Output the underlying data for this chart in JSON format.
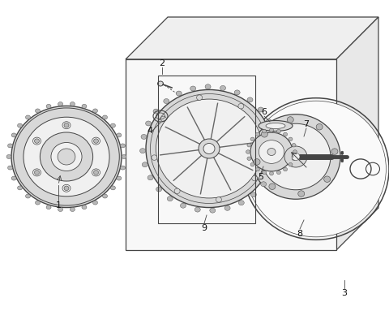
{
  "background_color": "#ffffff",
  "fig_width": 4.8,
  "fig_height": 3.83,
  "dpi": 100,
  "line_color": "#444444",
  "line_color_thin": "#666666",
  "fill_light": "#f0f0f0",
  "fill_mid": "#d8d8d8",
  "fill_dark": "#b8b8b8",
  "fill_white": "#fafafa"
}
